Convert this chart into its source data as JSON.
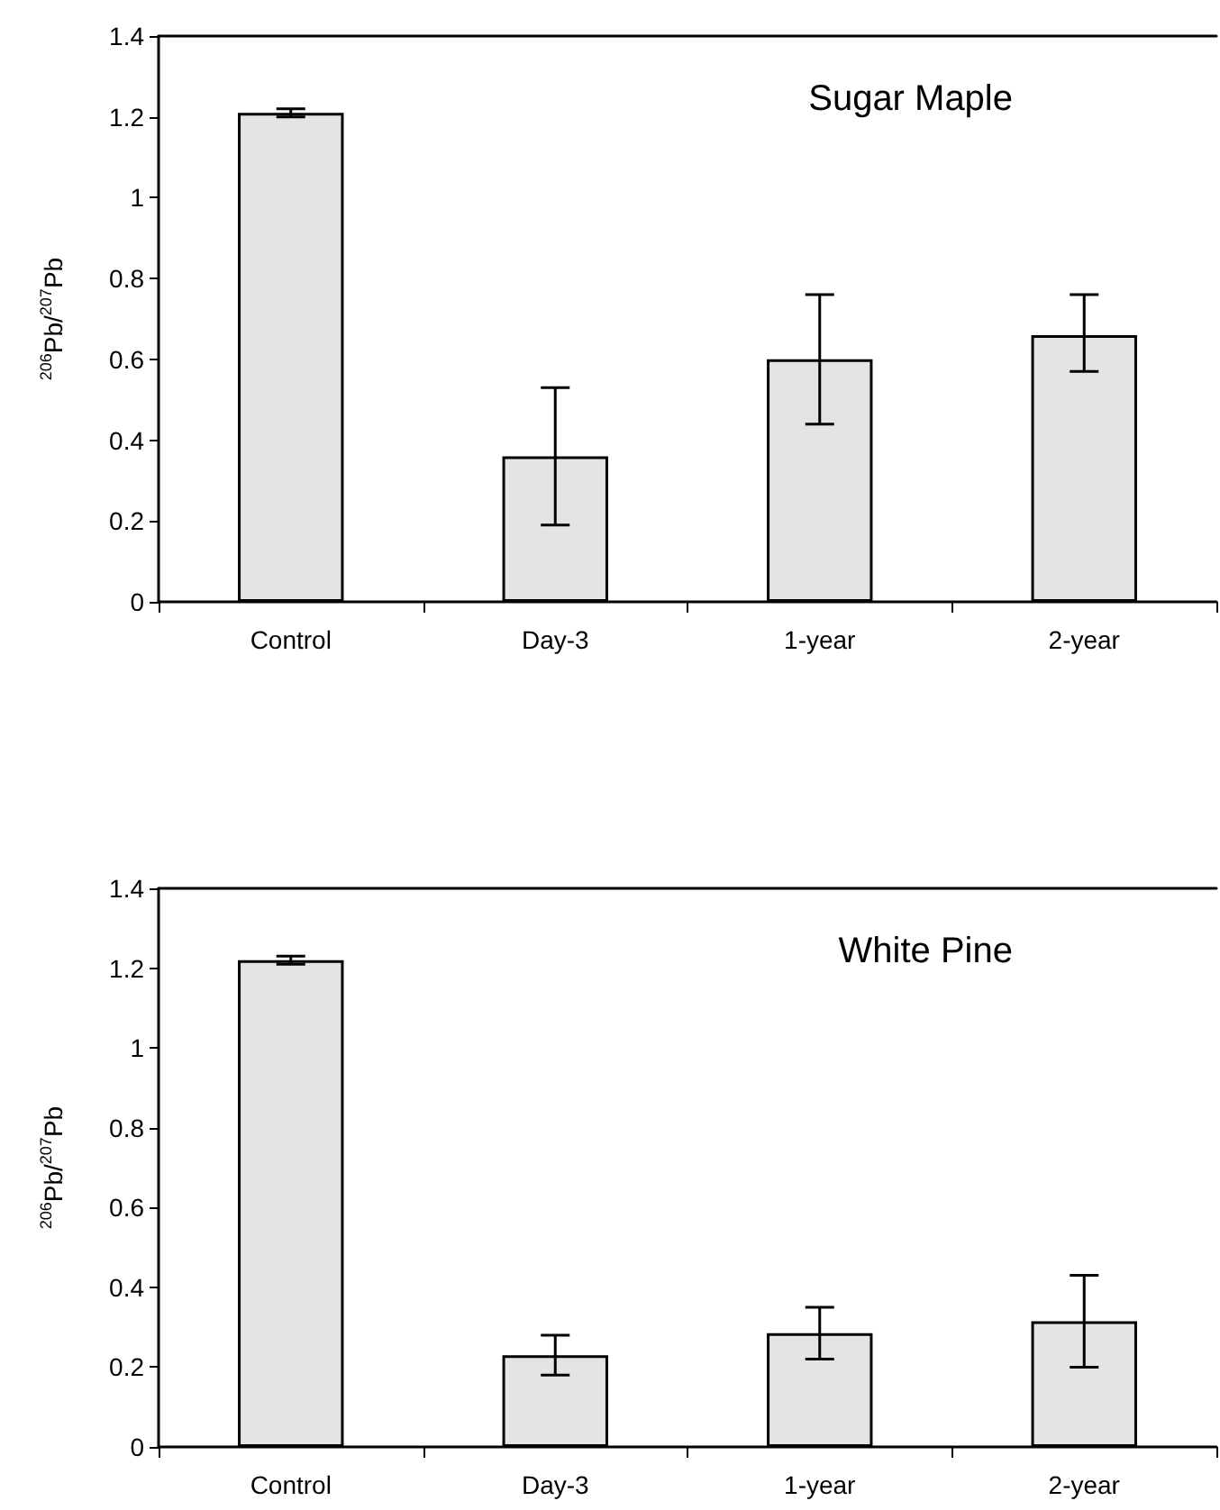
{
  "chart_data": [
    {
      "type": "bar",
      "title": "Sugar Maple",
      "ylabel": "$^{206}$Pb/$^{207}$Pb",
      "categories": [
        "Control",
        "Day-3",
        "1-year",
        "2-year"
      ],
      "values": [
        1.21,
        0.36,
        0.6,
        0.66
      ],
      "errors": [
        0.01,
        [
          0.19,
          0.53
        ],
        [
          0.44,
          0.76
        ],
        [
          0.57,
          0.76
        ]
      ],
      "color": "#e4e4e4",
      "ylim": [
        0,
        1.4
      ],
      "yticks": [
        0,
        0.2,
        0.4,
        0.6,
        0.8,
        1,
        1.2,
        1.4
      ],
      "grid": false
    },
    {
      "type": "bar",
      "title": "White Pine",
      "ylabel": "$^{206}$Pb/$^{207}$Pb",
      "categories": [
        "Control",
        "Day-3",
        "1-year",
        "2-year"
      ],
      "values": [
        1.22,
        0.23,
        0.285,
        0.315
      ],
      "errors": [
        0.01,
        [
          0.18,
          0.28
        ],
        [
          0.22,
          0.35
        ],
        [
          0.2,
          0.43
        ]
      ],
      "color": "#e4e4e4",
      "ylim": [
        0,
        1.4
      ],
      "yticks": [
        0,
        0.2,
        0.4,
        0.6,
        0.8,
        1,
        1.2,
        1.4
      ],
      "grid": false
    }
  ]
}
